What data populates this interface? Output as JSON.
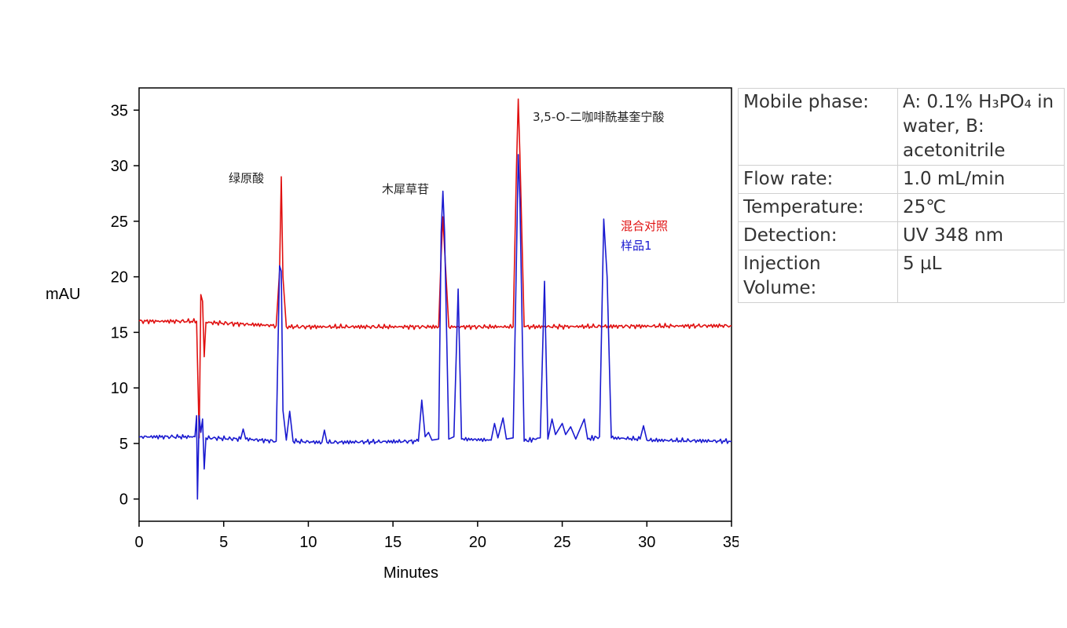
{
  "chart_data": {
    "type": "line",
    "xlabel": "Minutes",
    "ylabel": "mAU",
    "xlim": [
      0,
      35
    ],
    "ylim": [
      -2,
      37
    ],
    "xticks": [
      0,
      5,
      10,
      15,
      20,
      25,
      30,
      35
    ],
    "yticks": [
      0,
      5,
      10,
      15,
      20,
      25,
      30,
      35
    ],
    "grid": false,
    "legend": "right",
    "series": [
      {
        "name": "混合对照",
        "color": "#e01010",
        "baseline": 15.9,
        "points": [
          [
            0,
            16.0
          ],
          [
            3.4,
            16.0
          ],
          [
            3.55,
            5.5
          ],
          [
            3.65,
            18.4
          ],
          [
            3.75,
            17.8
          ],
          [
            3.85,
            12.8
          ],
          [
            3.95,
            15.9
          ],
          [
            8.1,
            15.6
          ],
          [
            8.3,
            20.5
          ],
          [
            8.4,
            29.0
          ],
          [
            8.5,
            20.0
          ],
          [
            8.7,
            15.5
          ],
          [
            17.7,
            15.5
          ],
          [
            17.85,
            22.0
          ],
          [
            17.95,
            25.4
          ],
          [
            18.05,
            22.5
          ],
          [
            18.3,
            15.5
          ],
          [
            22.1,
            15.5
          ],
          [
            22.3,
            30.0
          ],
          [
            22.4,
            36.0
          ],
          [
            22.5,
            31.0
          ],
          [
            22.75,
            15.5
          ],
          [
            35,
            15.6
          ]
        ]
      },
      {
        "name": "样品1",
        "color": "#1a1ad0",
        "baseline": 5.6,
        "points": [
          [
            0,
            5.6
          ],
          [
            3.3,
            5.6
          ],
          [
            3.4,
            7.5
          ],
          [
            3.45,
            0.0
          ],
          [
            3.55,
            7.5
          ],
          [
            3.65,
            6.0
          ],
          [
            3.75,
            7.2
          ],
          [
            3.85,
            2.7
          ],
          [
            3.95,
            5.5
          ],
          [
            6.0,
            5.4
          ],
          [
            6.15,
            6.3
          ],
          [
            6.3,
            5.4
          ],
          [
            8.1,
            5.2
          ],
          [
            8.3,
            21.0
          ],
          [
            8.4,
            20.5
          ],
          [
            8.5,
            8.0
          ],
          [
            8.7,
            5.3
          ],
          [
            8.9,
            7.9
          ],
          [
            9.1,
            5.2
          ],
          [
            10.8,
            5.1
          ],
          [
            10.95,
            6.2
          ],
          [
            11.1,
            5.1
          ],
          [
            16.5,
            5.2
          ],
          [
            16.7,
            8.9
          ],
          [
            16.9,
            5.6
          ],
          [
            17.1,
            6.0
          ],
          [
            17.3,
            5.3
          ],
          [
            17.7,
            5.4
          ],
          [
            17.85,
            24.0
          ],
          [
            17.95,
            27.7
          ],
          [
            18.05,
            24.0
          ],
          [
            18.3,
            5.4
          ],
          [
            18.6,
            5.6
          ],
          [
            18.85,
            18.9
          ],
          [
            19.05,
            5.4
          ],
          [
            20.8,
            5.3
          ],
          [
            21.0,
            6.8
          ],
          [
            21.2,
            5.5
          ],
          [
            21.5,
            7.3
          ],
          [
            21.7,
            5.4
          ],
          [
            22.1,
            5.5
          ],
          [
            22.3,
            22.0
          ],
          [
            22.4,
            31.0
          ],
          [
            22.5,
            27.0
          ],
          [
            22.75,
            5.2
          ],
          [
            23.7,
            5.5
          ],
          [
            23.95,
            19.6
          ],
          [
            24.15,
            5.4
          ],
          [
            24.4,
            7.2
          ],
          [
            24.6,
            5.8
          ],
          [
            25.0,
            6.8
          ],
          [
            25.2,
            5.8
          ],
          [
            25.5,
            6.5
          ],
          [
            25.8,
            5.4
          ],
          [
            26.3,
            7.2
          ],
          [
            26.5,
            5.4
          ],
          [
            27.2,
            5.6
          ],
          [
            27.45,
            25.2
          ],
          [
            27.65,
            20.0
          ],
          [
            27.9,
            5.5
          ],
          [
            29.6,
            5.4
          ],
          [
            29.8,
            6.6
          ],
          [
            30.0,
            5.3
          ],
          [
            35,
            5.2
          ]
        ]
      }
    ],
    "annotations": [
      {
        "text": "绿原酸",
        "x": 8.4,
        "y": 29.0
      },
      {
        "text": "木犀草苷",
        "x": 17.95,
        "y": 27.7
      },
      {
        "text": "3,5-O-二咖啡酰基奎宁酸",
        "x": 22.4,
        "y": 36.0
      }
    ]
  },
  "conditions": [
    {
      "key": "Mobile phase:",
      "value": "A: 0.1% H₃PO₄ in water, B: acetonitrile"
    },
    {
      "key": "Flow rate:",
      "value": "1.0 mL/min"
    },
    {
      "key": "Temperature:",
      "value": "25℃"
    },
    {
      "key": "Detection:",
      "value": "UV 348 nm"
    },
    {
      "key": "Injection Volume:",
      "value": "5 µL"
    }
  ]
}
